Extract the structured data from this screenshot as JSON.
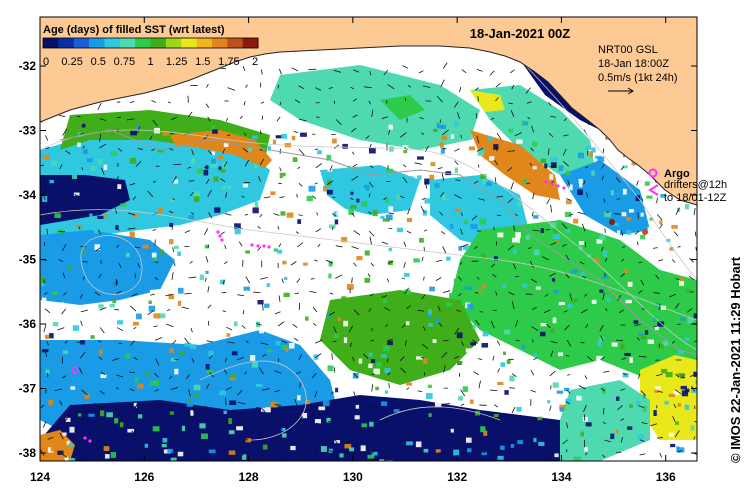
{
  "title": "18-Jan-2021 00Z",
  "colorbar": {
    "title": "Age (days) of filled SST (wrt latest)",
    "tick_labels": [
      "0",
      "0.25",
      "0.5",
      "0.75",
      "1",
      "1.25",
      "1.5",
      "1.75",
      "2"
    ],
    "colors": [
      "#08106b",
      "#0a2ea8",
      "#1b5fd6",
      "#1a9be6",
      "#2fc8e0",
      "#4fd9b0",
      "#2ecb4a",
      "#3fae1a",
      "#9fd61a",
      "#e8e81a",
      "#f2b51a",
      "#e0861a",
      "#c0501a",
      "#8a1a0a"
    ]
  },
  "axes": {
    "lon_labels": [
      "124",
      "126",
      "128",
      "130",
      "132",
      "134",
      "136"
    ],
    "lat_labels": [
      "-32",
      "-33",
      "-34",
      "-35",
      "-36",
      "-37",
      "-38"
    ]
  },
  "legend": {
    "model_line1": "NRT00 GSL",
    "model_line2": "18-Jan 18:00Z",
    "model_line3": "0.5m/s (1kt 24h)",
    "argo_label": "Argo",
    "drifters_line1": "drifters@12h",
    "drifters_line2": "to 18/01-12Z"
  },
  "credit": "© IMOS 22-Jan-2021 11:29 Hobart",
  "colors": {
    "land": "#fdca95",
    "sea_nodata": "#ffffff",
    "argo": "#ff30ff",
    "coast": "#222222",
    "contour": "#c8c8c8"
  }
}
